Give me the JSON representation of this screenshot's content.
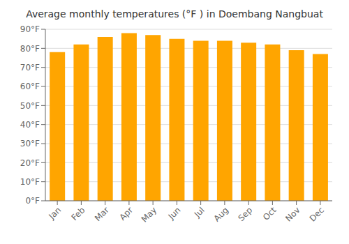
{
  "chart_data": {
    "type": "bar",
    "title": "Average monthly temperatures (°F ) in Doembang Nangbuat",
    "categories": [
      "Jan",
      "Feb",
      "Mar",
      "Apr",
      "May",
      "Jun",
      "Jul",
      "Aug",
      "Sep",
      "Oct",
      "Nov",
      "Dec"
    ],
    "values": [
      78,
      82,
      86,
      88,
      87,
      85,
      84,
      84,
      83,
      82,
      79,
      77
    ],
    "color": "#FFA500",
    "ylim": [
      0,
      90
    ],
    "yticks": [
      {
        "value": 0,
        "label": "0°F"
      },
      {
        "value": 10,
        "label": "10°F"
      },
      {
        "value": 20,
        "label": "20°F"
      },
      {
        "value": 30,
        "label": "30°F"
      },
      {
        "value": 40,
        "label": "40°F"
      },
      {
        "value": 50,
        "label": "50°F"
      },
      {
        "value": 60,
        "label": "60°F"
      },
      {
        "value": 70,
        "label": "70°F"
      },
      {
        "value": 80,
        "label": "80°F"
      },
      {
        "value": 90,
        "label": "90°F"
      }
    ],
    "grid": true
  }
}
